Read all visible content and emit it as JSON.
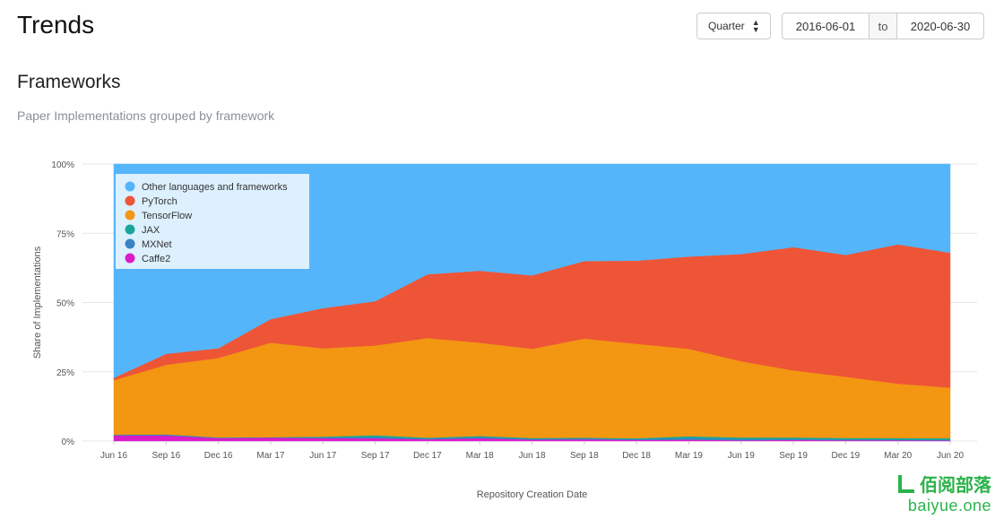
{
  "header": {
    "title": "Trends",
    "period_select": "Quarter",
    "date_from": "2016-06-01",
    "date_to_label": "to",
    "date_to": "2020-06-30"
  },
  "section": {
    "title": "Frameworks",
    "subtitle": "Paper Implementations grouped by framework"
  },
  "watermark": {
    "line1": "佰阅部落",
    "line2": "baiyue.one"
  },
  "chart_data": {
    "type": "area",
    "stacked": true,
    "xlabel": "Repository Creation Date",
    "ylabel": "Share of Implementations",
    "ylim": [
      0,
      100
    ],
    "y_ticks": [
      "0%",
      "25%",
      "50%",
      "75%",
      "100%"
    ],
    "grid": true,
    "legend_position": "top-left",
    "x": [
      "Jun 16",
      "Sep 16",
      "Dec 16",
      "Mar 17",
      "Jun 17",
      "Sep 17",
      "Dec 17",
      "Mar 18",
      "Jun 18",
      "Sep 18",
      "Dec 18",
      "Mar 19",
      "Jun 19",
      "Sep 19",
      "Dec 19",
      "Mar 20",
      "Jun 20"
    ],
    "series": [
      {
        "name": "Caffe2",
        "color": "#d91cc7",
        "values": [
          2.0,
          2.0,
          1.0,
          1.2,
          1.0,
          1.0,
          0.6,
          1.0,
          0.5,
          0.6,
          0.4,
          0.5,
          0.3,
          0.4,
          0.3,
          0.3,
          0.2
        ]
      },
      {
        "name": "MXNet",
        "color": "#3a82c4",
        "values": [
          0.3,
          0.4,
          0.3,
          0.2,
          0.3,
          0.4,
          0.3,
          0.4,
          0.3,
          0.3,
          0.3,
          0.5,
          0.4,
          0.3,
          0.3,
          0.2,
          0.2
        ]
      },
      {
        "name": "JAX",
        "color": "#1aa59c",
        "values": [
          0.0,
          0.0,
          0.0,
          0.0,
          0.3,
          0.7,
          0.3,
          0.4,
          0.3,
          0.3,
          0.3,
          0.7,
          0.6,
          0.6,
          0.5,
          0.6,
          0.6
        ]
      },
      {
        "name": "TensorFlow",
        "color": "#f39612",
        "values": [
          19.7,
          25.1,
          28.7,
          34.1,
          31.9,
          32.4,
          36.0,
          33.7,
          32.2,
          35.8,
          34.1,
          31.6,
          27.5,
          24.2,
          22.1,
          19.6,
          18.3
        ]
      },
      {
        "name": "PyTorch",
        "color": "#ee5537",
        "values": [
          0.8,
          4.0,
          3.5,
          8.5,
          14.5,
          16.0,
          23.0,
          26.0,
          26.5,
          28.0,
          30.0,
          33.3,
          38.7,
          44.5,
          44.0,
          50.3,
          48.7
        ]
      },
      {
        "name": "Other languages and frameworks",
        "color": "#55b5fb",
        "values": [
          77.2,
          68.5,
          66.5,
          56.0,
          52.0,
          49.5,
          39.8,
          38.5,
          40.2,
          35.0,
          34.9,
          33.4,
          32.5,
          30.0,
          32.8,
          29.0,
          32.0
        ]
      }
    ],
    "legend_order": [
      "Other languages and frameworks",
      "PyTorch",
      "TensorFlow",
      "JAX",
      "MXNet",
      "Caffe2"
    ]
  }
}
